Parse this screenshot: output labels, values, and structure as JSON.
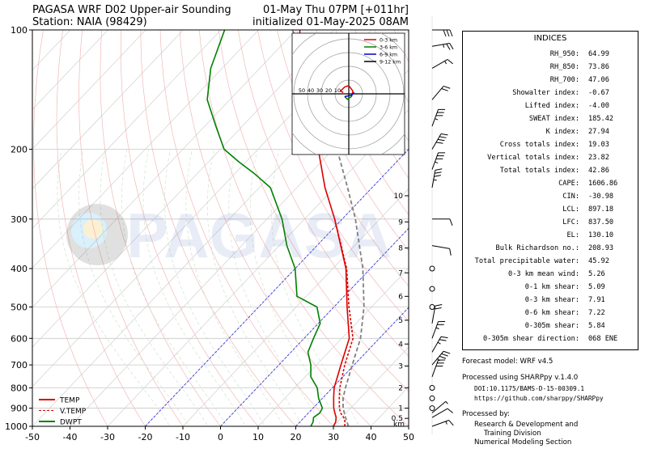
{
  "header": {
    "title_left_line1": "PAGASA WRF D02 Upper-air Sounding",
    "title_left_line2": "Station: NAIA (98429)",
    "title_right_line1": "01-May Thu 07PM [+011hr]",
    "title_right_line2": "initialized 01-May-2025 08AM"
  },
  "watermark": "PAGASA",
  "chart_data": {
    "type": "line",
    "subtype": "skew-t log-p",
    "xlabel": "",
    "ylabel": "",
    "y_scale": "log",
    "ylim": [
      1000,
      100
    ],
    "xlim": [
      -50,
      50
    ],
    "x_ticks": [
      "-50",
      "-40",
      "-30",
      "-20",
      "-10",
      "0",
      "10",
      "20",
      "30",
      "40",
      "50"
    ],
    "y_ticks": [
      "1000",
      "900",
      "800",
      "700",
      "600",
      "500",
      "400",
      "300",
      "200",
      "100"
    ],
    "grid": true,
    "legend": {
      "position": "bottom-left",
      "entries": [
        {
          "label": "TEMP",
          "color": "#dd0000",
          "style": "solid"
        },
        {
          "label": "V.TEMP",
          "color": "#dd0000",
          "style": "dashed"
        },
        {
          "label": "DWPT",
          "color": "#008000",
          "style": "solid"
        }
      ]
    },
    "height_scale": {
      "unit": "km",
      "labels": [
        "0.5",
        "1",
        "2",
        "3",
        "4",
        "5",
        "6",
        "7",
        "8",
        "9",
        "10"
      ],
      "pressures": [
        955,
        900,
        800,
        705,
        620,
        540,
        470,
        410,
        355,
        305,
        262
      ]
    },
    "series": [
      {
        "name": "TEMP",
        "color": "#dd0000",
        "dash": "",
        "points": [
          [
            1000,
            30.0
          ],
          [
            975,
            29.5
          ],
          [
            950,
            28.5
          ],
          [
            925,
            27.0
          ],
          [
            900,
            25.5
          ],
          [
            850,
            23.0
          ],
          [
            800,
            20.5
          ],
          [
            700,
            16.5
          ],
          [
            600,
            12.0
          ],
          [
            500,
            3.5
          ],
          [
            400,
            -6.5
          ],
          [
            300,
            -22.0
          ],
          [
            250,
            -32.5
          ],
          [
            200,
            -44.0
          ],
          [
            175,
            -51.0
          ],
          [
            150,
            -58.0
          ],
          [
            125,
            -68.0
          ],
          [
            110,
            -75.0
          ],
          [
            100,
            -79.0
          ]
        ]
      },
      {
        "name": "V.TEMP",
        "color": "#dd0000",
        "dash": "3,2",
        "points": [
          [
            1000,
            33.0
          ],
          [
            975,
            32.0
          ],
          [
            950,
            30.5
          ],
          [
            925,
            28.5
          ],
          [
            900,
            27.0
          ],
          [
            850,
            24.5
          ],
          [
            800,
            22.0
          ],
          [
            700,
            17.5
          ],
          [
            600,
            13.0
          ],
          [
            500,
            4.0
          ],
          [
            400,
            -6.3
          ],
          [
            300,
            -22.0
          ]
        ]
      },
      {
        "name": "DWPT",
        "color": "#008000",
        "dash": "",
        "points": [
          [
            1000,
            24.0
          ],
          [
            975,
            23.5
          ],
          [
            950,
            22.5
          ],
          [
            925,
            23.0
          ],
          [
            900,
            22.5
          ],
          [
            850,
            19.0
          ],
          [
            800,
            16.0
          ],
          [
            750,
            11.5
          ],
          [
            700,
            8.5
          ],
          [
            650,
            4.5
          ],
          [
            600,
            2.5
          ],
          [
            550,
            0.5
          ],
          [
            500,
            -4.5
          ],
          [
            470,
            -12.5
          ],
          [
            400,
            -20.0
          ],
          [
            350,
            -28.0
          ],
          [
            300,
            -36.0
          ],
          [
            250,
            -47.0
          ],
          [
            230,
            -55.0
          ],
          [
            215,
            -62.0
          ],
          [
            200,
            -69.0
          ],
          [
            175,
            -77.0
          ],
          [
            150,
            -86.0
          ],
          [
            125,
            -93.0
          ],
          [
            100,
            -99.0
          ]
        ]
      },
      {
        "name": "PARCEL",
        "color": "#808080",
        "dash": "5,3",
        "points": [
          [
            1000,
            34.0
          ],
          [
            950,
            31.0
          ],
          [
            900,
            28.0
          ],
          [
            850,
            25.5
          ],
          [
            800,
            23.5
          ],
          [
            700,
            19.5
          ],
          [
            600,
            15.0
          ],
          [
            500,
            8.0
          ],
          [
            400,
            -2.0
          ],
          [
            300,
            -16.5
          ],
          [
            250,
            -26.5
          ],
          [
            200,
            -39.0
          ],
          [
            150,
            -55.0
          ],
          [
            130,
            -64.0
          ],
          [
            110,
            -75.0
          ],
          [
            100,
            -81.0
          ]
        ]
      }
    ]
  },
  "hodograph": {
    "rings": [
      10,
      20,
      30,
      40,
      50
    ],
    "ring_labels": [
      "50",
      "40",
      "30",
      "20",
      "10"
    ],
    "legend": [
      {
        "label": "0-3 km",
        "color": "#dd0000"
      },
      {
        "label": "3-6 km",
        "color": "#008000"
      },
      {
        "label": "6-9 km",
        "color": "#0000cc"
      },
      {
        "label": "9-12 km",
        "color": "#000000"
      }
    ],
    "segments": [
      {
        "color": "#dd0000",
        "points": [
          [
            -4,
            1
          ],
          [
            -6,
            2
          ],
          [
            -3,
            5
          ],
          [
            0,
            6
          ],
          [
            3,
            2
          ],
          [
            2,
            -2
          ]
        ]
      },
      {
        "color": "#008000",
        "points": [
          [
            2,
            -2
          ],
          [
            -1,
            -4
          ],
          [
            -3,
            -2
          ]
        ]
      },
      {
        "color": "#0000cc",
        "points": [
          [
            -3,
            -2
          ],
          [
            2,
            -1
          ],
          [
            4,
            1
          ]
        ]
      }
    ]
  },
  "indices": {
    "title": "INDICES",
    "rows": [
      {
        "label": "RH_950:",
        "value": "64.99"
      },
      {
        "label": "RH_850:",
        "value": "73.86"
      },
      {
        "label": "RH_700:",
        "value": "47.06"
      },
      {
        "label": "Showalter index:",
        "value": "-0.67"
      },
      {
        "label": "Lifted index:",
        "value": "-4.00"
      },
      {
        "label": "SWEAT index:",
        "value": "185.42"
      },
      {
        "label": "K index:",
        "value": "27.94"
      },
      {
        "label": "Cross totals index:",
        "value": "19.03"
      },
      {
        "label": "Vertical totals index:",
        "value": "23.82"
      },
      {
        "label": "Total totals index:",
        "value": "42.86"
      },
      {
        "label": "CAPE:",
        "value": "1606.86"
      },
      {
        "label": "CIN:",
        "value": "-30.98"
      },
      {
        "label": "LCL:",
        "value": "897.18"
      },
      {
        "label": "LFC:",
        "value": "837.50"
      },
      {
        "label": "EL:",
        "value": "130.10"
      },
      {
        "label": "Bulk Richardson no.:",
        "value": "208.93"
      },
      {
        "label": "Total precipitable water:",
        "value": "45.92"
      },
      {
        "label": "0-3 km mean wind:",
        "value": "5.26"
      },
      {
        "label": "0-1 km shear:",
        "value": "5.09"
      },
      {
        "label": "0-3 km shear:",
        "value": "7.91"
      },
      {
        "label": "0-6 km shear:",
        "value": "7.22"
      },
      {
        "label": "0-305m shear:",
        "value": "5.84"
      },
      {
        "label": "0-305m shear direction:",
        "value": "068 ENE"
      }
    ]
  },
  "footer": {
    "forecast_model": "Forecast model: WRF v4.5",
    "processed_using": "Processed using SHARPpy v.1.4.0",
    "doi": "DOI:10.1175/BAMS-D-15-00309.1",
    "url": "https://github.com/sharppy/SHARPpy",
    "processed_by": "Processed by:",
    "org_line1": "Research & Development and",
    "org_line2": "Training Division",
    "org_line3": "Numerical Modeling Section"
  },
  "wind_barbs": {
    "pressures": [
      1000,
      950,
      925,
      900,
      850,
      800,
      750,
      700,
      650,
      600,
      550,
      500,
      450,
      400,
      350,
      300,
      250,
      225,
      200,
      175,
      150,
      125,
      110,
      100
    ],
    "speeds_kt": [
      15,
      10,
      5,
      0,
      0,
      0,
      30,
      35,
      25,
      25,
      20,
      0,
      0,
      0,
      10,
      10,
      35,
      35,
      40,
      35,
      20,
      15,
      25,
      30
    ],
    "directions": [
      70,
      60,
      50,
      0,
      0,
      0,
      20,
      40,
      30,
      20,
      10,
      0,
      0,
      0,
      100,
      90,
      10,
      20,
      30,
      20,
      40,
      60,
      80,
      90
    ]
  }
}
